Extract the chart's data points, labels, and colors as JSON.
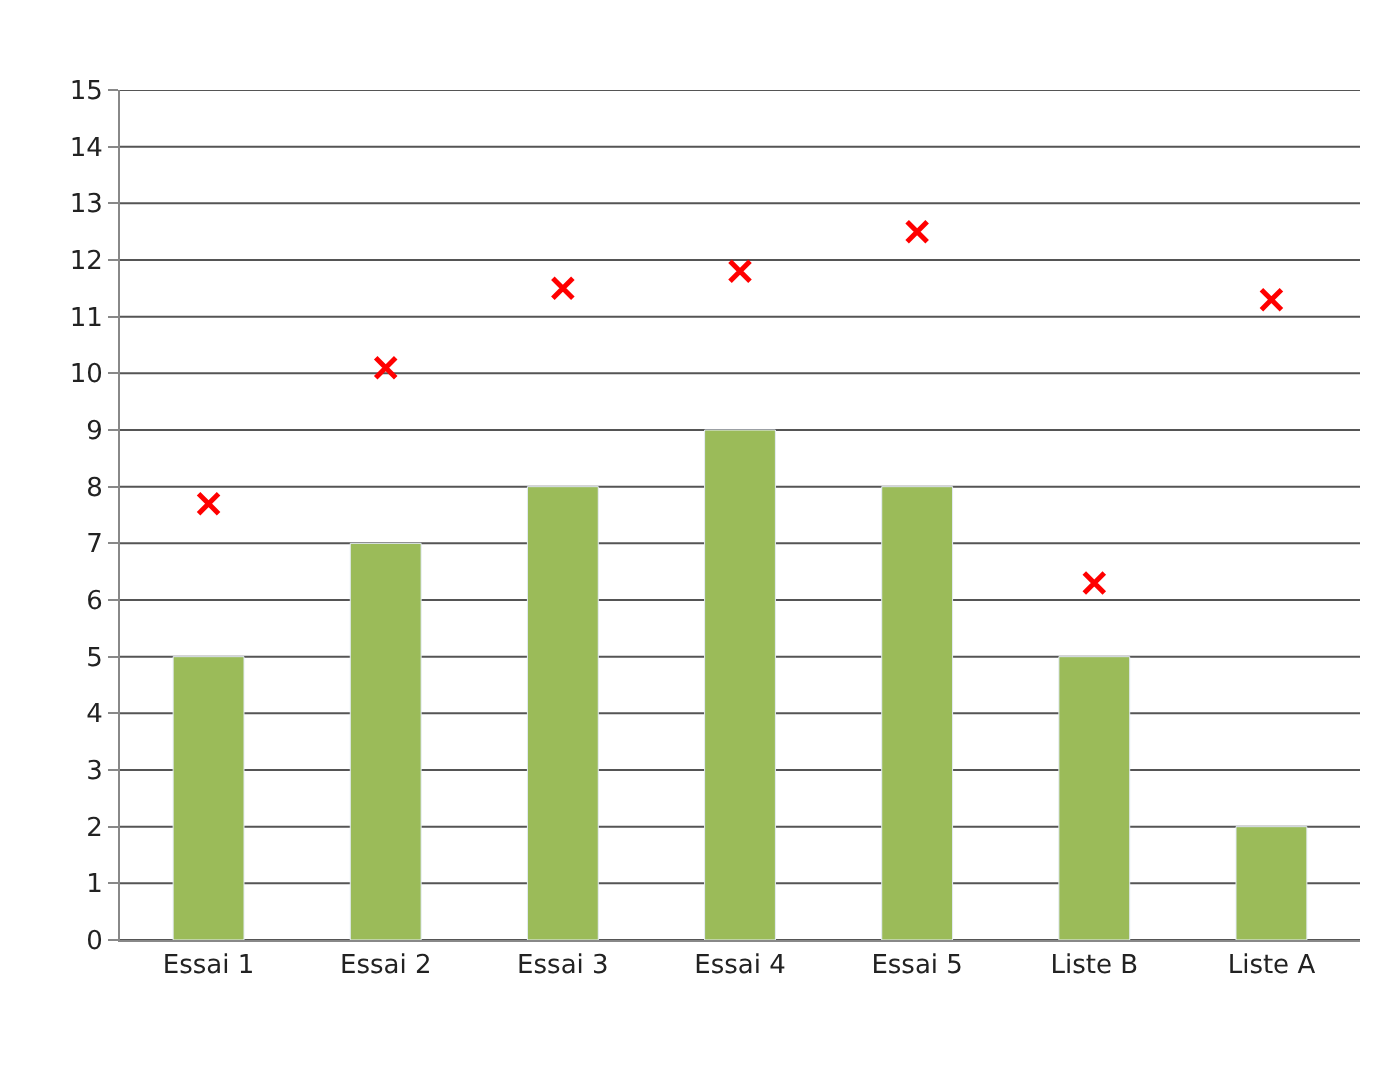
{
  "chart_data": {
    "type": "bar",
    "categories": [
      "Essai 1",
      "Essai 2",
      "Essai 3",
      "Essai 4",
      "Essai 5",
      "Liste B",
      "Liste A"
    ],
    "series": [
      {
        "color": "#9bbb59",
        "values": [
          5,
          7,
          8,
          9,
          8,
          5,
          2
        ]
      },
      {
        "type": "scatter",
        "color": "#ff0000",
        "marker": "cross",
        "values": [
          7.7,
          10.1,
          11.5,
          11.8,
          12.5,
          6.3,
          11.3
        ]
      }
    ],
    "ylim": [
      0,
      15
    ],
    "yticks": [
      0,
      1,
      2,
      3,
      4,
      5,
      6,
      7,
      8,
      9,
      10,
      11,
      12,
      13,
      14,
      15
    ],
    "grid": "y",
    "legend": false
  }
}
